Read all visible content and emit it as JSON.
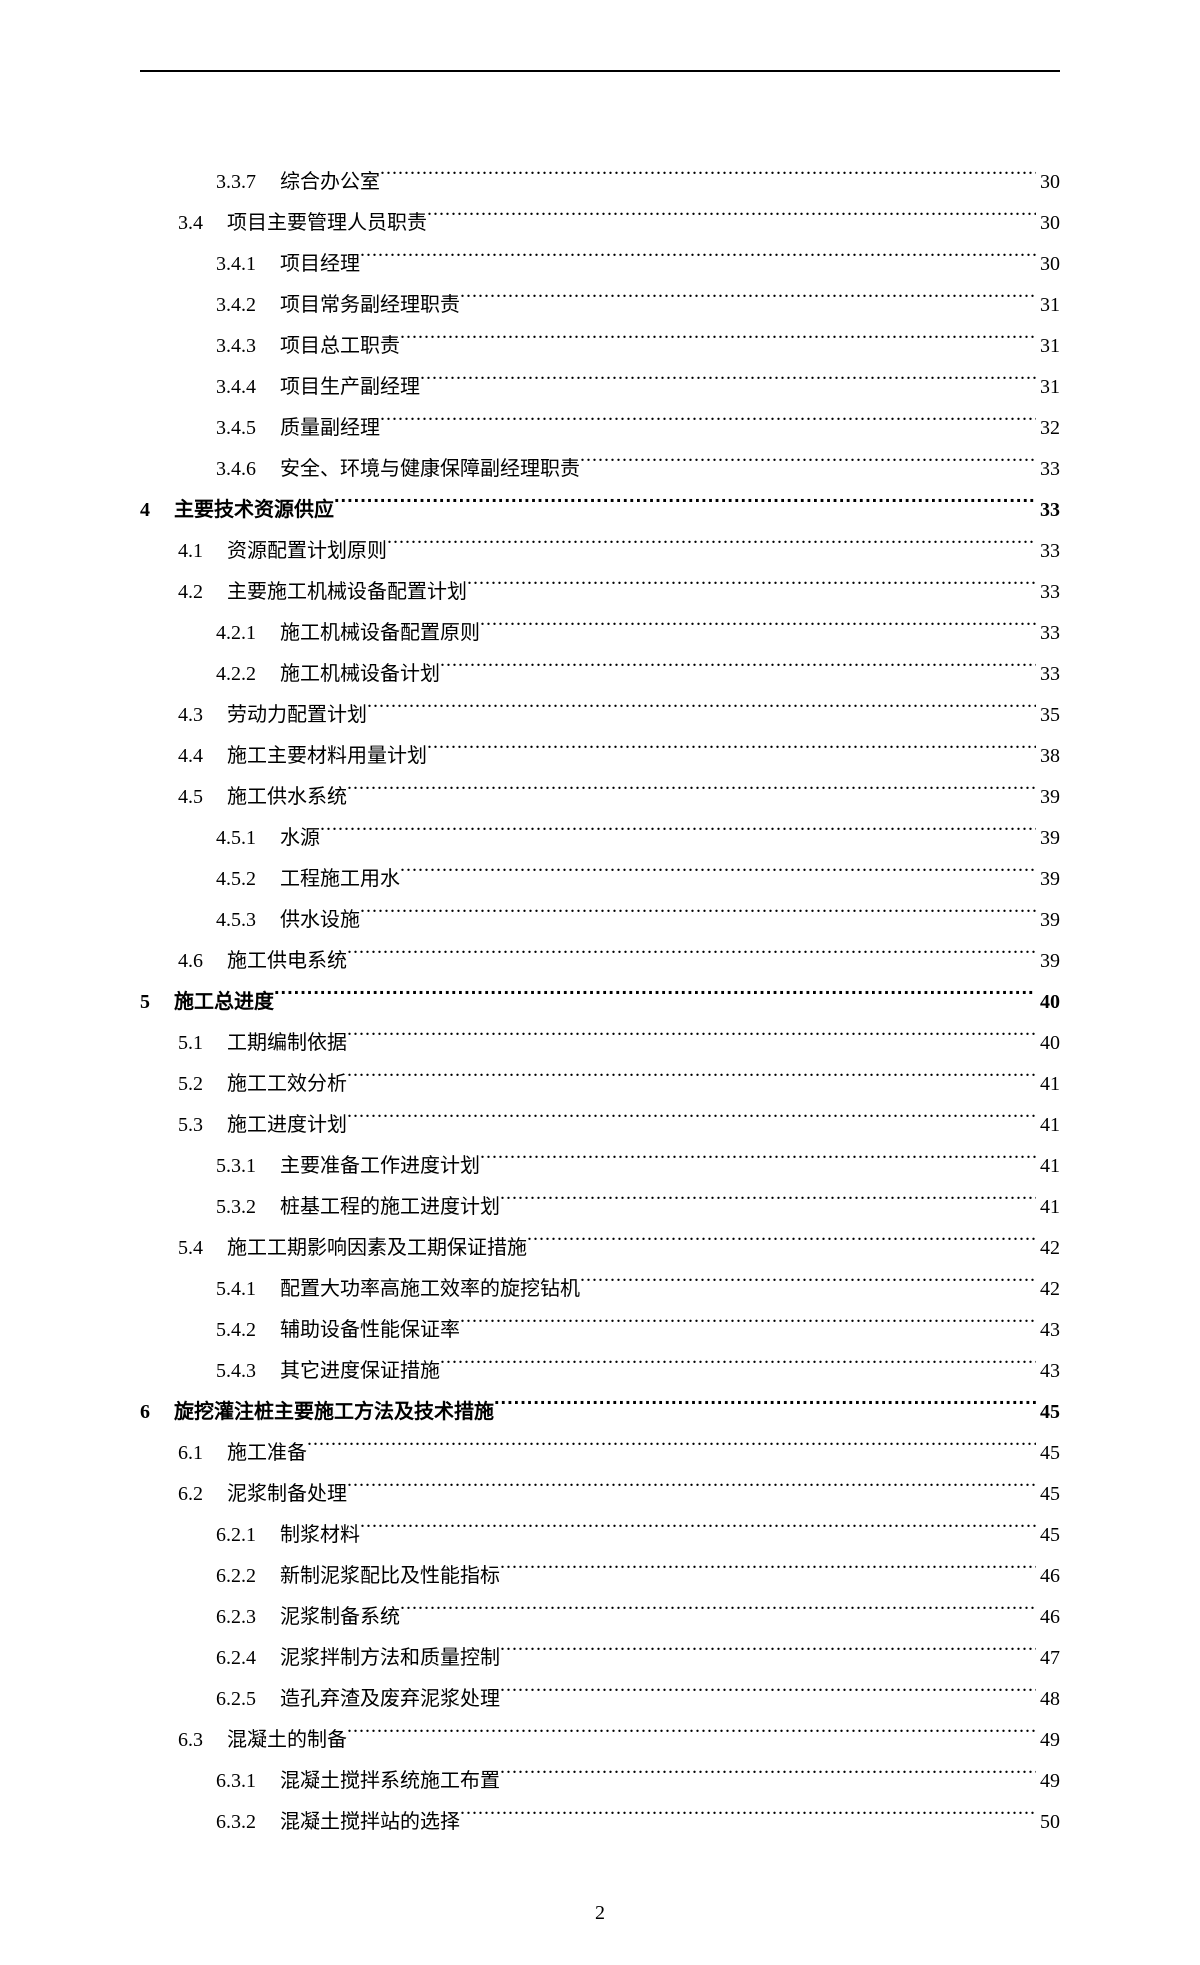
{
  "page_number": "2",
  "toc": [
    {
      "level": 2,
      "num": "3.3.7",
      "title": "综合办公室",
      "page": "30",
      "bold": false
    },
    {
      "level": 1,
      "num": "3.4",
      "title": "项目主要管理人员职责",
      "page": "30",
      "bold": false
    },
    {
      "level": 2,
      "num": "3.4.1",
      "title": "项目经理",
      "page": "30",
      "bold": false
    },
    {
      "level": 2,
      "num": "3.4.2",
      "title": "项目常务副经理职责",
      "page": "31",
      "bold": false
    },
    {
      "level": 2,
      "num": "3.4.3",
      "title": "项目总工职责",
      "page": "31",
      "bold": false
    },
    {
      "level": 2,
      "num": "3.4.4",
      "title": "项目生产副经理",
      "page": "31",
      "bold": false
    },
    {
      "level": 2,
      "num": "3.4.5",
      "title": "质量副经理",
      "page": "32",
      "bold": false
    },
    {
      "level": 2,
      "num": "3.4.6",
      "title": "安全、环境与健康保障副经理职责",
      "page": "33",
      "bold": false
    },
    {
      "level": 0,
      "num": "4",
      "title": "主要技术资源供应",
      "page": "33",
      "bold": true
    },
    {
      "level": 1,
      "num": "4.1",
      "title": "资源配置计划原则",
      "page": "33",
      "bold": false
    },
    {
      "level": 1,
      "num": "4.2",
      "title": "主要施工机械设备配置计划",
      "page": "33",
      "bold": false
    },
    {
      "level": 2,
      "num": "4.2.1",
      "title": "施工机械设备配置原则",
      "page": "33",
      "bold": false
    },
    {
      "level": 2,
      "num": "4.2.2",
      "title": "施工机械设备计划",
      "page": "33",
      "bold": false
    },
    {
      "level": 1,
      "num": "4.3",
      "title": "劳动力配置计划",
      "page": "35",
      "bold": false
    },
    {
      "level": 1,
      "num": "4.4",
      "title": "施工主要材料用量计划",
      "page": "38",
      "bold": false
    },
    {
      "level": 1,
      "num": "4.5",
      "title": "施工供水系统",
      "page": "39",
      "bold": false
    },
    {
      "level": 2,
      "num": "4.5.1",
      "title": "水源",
      "page": "39",
      "bold": false
    },
    {
      "level": 2,
      "num": "4.5.2",
      "title": "工程施工用水",
      "page": "39",
      "bold": false
    },
    {
      "level": 2,
      "num": "4.5.3",
      "title": "供水设施",
      "page": "39",
      "bold": false
    },
    {
      "level": 1,
      "num": "4.6",
      "title": "施工供电系统",
      "page": "39",
      "bold": false
    },
    {
      "level": 0,
      "num": "5",
      "title": "施工总进度",
      "page": "40",
      "bold": true
    },
    {
      "level": 1,
      "num": "5.1",
      "title": "工期编制依据",
      "page": "40",
      "bold": false
    },
    {
      "level": 1,
      "num": "5.2",
      "title": "施工工效分析",
      "page": "41",
      "bold": false
    },
    {
      "level": 1,
      "num": "5.3",
      "title": "施工进度计划",
      "page": "41",
      "bold": false
    },
    {
      "level": 2,
      "num": "5.3.1",
      "title": "主要准备工作进度计划",
      "page": "41",
      "bold": false
    },
    {
      "level": 2,
      "num": "5.3.2",
      "title": "桩基工程的施工进度计划",
      "page": "41",
      "bold": false
    },
    {
      "level": 1,
      "num": "5.4",
      "title": "施工工期影响因素及工期保证措施",
      "page": "42",
      "bold": false
    },
    {
      "level": 2,
      "num": "5.4.1",
      "title": "配置大功率高施工效率的旋挖钻机",
      "page": "42",
      "bold": false
    },
    {
      "level": 2,
      "num": "5.4.2",
      "title": "辅助设备性能保证率",
      "page": "43",
      "bold": false
    },
    {
      "level": 2,
      "num": "5.4.3",
      "title": "其它进度保证措施",
      "page": "43",
      "bold": false
    },
    {
      "level": 0,
      "num": "6",
      "title": "旋挖灌注桩主要施工方法及技术措施",
      "page": "45",
      "bold": true
    },
    {
      "level": 1,
      "num": "6.1",
      "title": "施工准备",
      "page": "45",
      "bold": false
    },
    {
      "level": 1,
      "num": "6.2",
      "title": "泥浆制备处理",
      "page": "45",
      "bold": false
    },
    {
      "level": 2,
      "num": "6.2.1",
      "title": "制浆材料",
      "page": "45",
      "bold": false
    },
    {
      "level": 2,
      "num": "6.2.2",
      "title": "新制泥浆配比及性能指标",
      "page": "46",
      "bold": false
    },
    {
      "level": 2,
      "num": "6.2.3",
      "title": "泥浆制备系统",
      "page": "46",
      "bold": false
    },
    {
      "level": 2,
      "num": "6.2.4",
      "title": "泥浆拌制方法和质量控制",
      "page": "47",
      "bold": false
    },
    {
      "level": 2,
      "num": "6.2.5",
      "title": "造孔弃渣及废弃泥浆处理",
      "page": "48",
      "bold": false
    },
    {
      "level": 1,
      "num": "6.3",
      "title": "混凝土的制备",
      "page": "49",
      "bold": false
    },
    {
      "level": 2,
      "num": "6.3.1",
      "title": "混凝土搅拌系统施工布置",
      "page": "49",
      "bold": false
    },
    {
      "level": 2,
      "num": "6.3.2",
      "title": "混凝土搅拌站的选择",
      "page": "50",
      "bold": false
    }
  ]
}
